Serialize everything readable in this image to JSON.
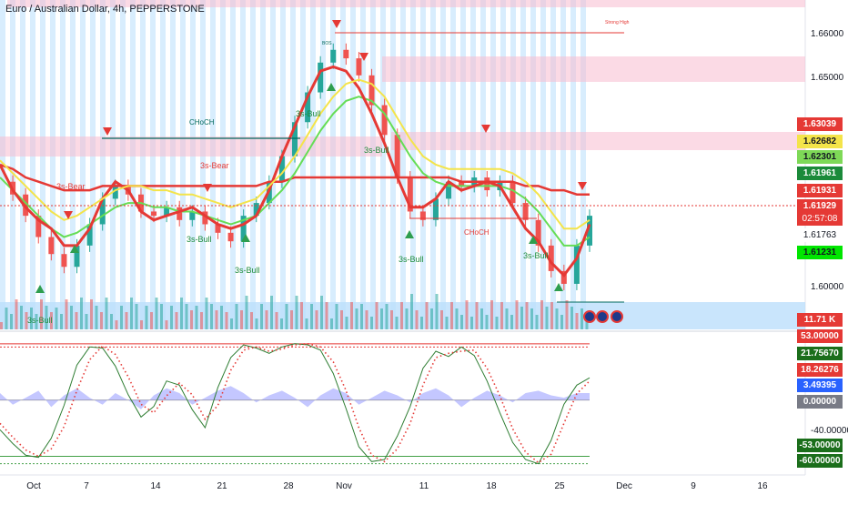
{
  "header": {
    "title": "Euro / Australian Dollar, 4h, PEPPERSTONE"
  },
  "colors": {
    "bull": "#26a69a",
    "bear": "#ef5350",
    "band": "#90caf9",
    "ema_red": "#e53935",
    "ema_green": "#66dd55",
    "ema_yellow": "#f4e44a",
    "accent_blue": "#2962ff"
  },
  "chart_data": [
    {
      "type": "line",
      "title": "Euro / Australian Dollar, 4h, PEPPERSTONE",
      "x_ticks": [
        "Oct",
        "7",
        "14",
        "21",
        "28",
        "Nov",
        "11",
        "18",
        "25",
        "Dec",
        "9",
        "16"
      ],
      "y_ticks": [
        "1.66000",
        "1.65000",
        "1.60000"
      ],
      "ylim": [
        1.597,
        1.668
      ],
      "series": [
        {
          "values": [
            1.627,
            1.624,
            1.619,
            1.614,
            1.61,
            1.607,
            1.612,
            1.617,
            1.623,
            1.626,
            1.624,
            1.62,
            1.619,
            1.621,
            1.618,
            1.62,
            1.617,
            1.615,
            1.613,
            1.619,
            1.622,
            1.627,
            1.633,
            1.641,
            1.648,
            1.655,
            1.658,
            1.656,
            1.652,
            1.645,
            1.638,
            1.628,
            1.62,
            1.618,
            1.623,
            1.627,
            1.626,
            1.628,
            1.625,
            1.627,
            1.622,
            1.618,
            1.612,
            1.606,
            1.603,
            1.612,
            1.619
          ]
        },
        {
          "values": [
            1.628,
            1.625,
            1.622,
            1.619,
            1.616,
            1.614,
            1.615,
            1.617,
            1.619,
            1.621,
            1.622,
            1.622,
            1.621,
            1.621,
            1.62,
            1.62,
            1.619,
            1.618,
            1.617,
            1.618,
            1.619,
            1.622,
            1.625,
            1.629,
            1.634,
            1.639,
            1.643,
            1.646,
            1.647,
            1.646,
            1.643,
            1.638,
            1.633,
            1.629,
            1.627,
            1.626,
            1.626,
            1.626,
            1.626,
            1.626,
            1.625,
            1.623,
            1.62,
            1.616,
            1.612,
            1.612,
            1.614
          ]
        },
        {
          "values": [
            1.631,
            1.63,
            1.628,
            1.627,
            1.626,
            1.625,
            1.625,
            1.625,
            1.626,
            1.626,
            1.626,
            1.626,
            1.626,
            1.626,
            1.626,
            1.626,
            1.626,
            1.626,
            1.626,
            1.626,
            1.626,
            1.627,
            1.627,
            1.628,
            1.628,
            1.628,
            1.628,
            1.628,
            1.628,
            1.628,
            1.628,
            1.628,
            1.628,
            1.628,
            1.628,
            1.628,
            1.627,
            1.627,
            1.627,
            1.627,
            1.627,
            1.626,
            1.626,
            1.625,
            1.625,
            1.624,
            1.624
          ]
        },
        {
          "values": [
            1.631,
            1.625,
            1.621,
            1.618,
            1.616,
            1.612,
            1.612,
            1.616,
            1.623,
            1.627,
            1.625,
            1.62,
            1.618,
            1.619,
            1.62,
            1.621,
            1.619,
            1.617,
            1.616,
            1.617,
            1.619,
            1.625,
            1.633,
            1.64,
            1.647,
            1.653,
            1.654,
            1.653,
            1.649,
            1.643,
            1.636,
            1.628,
            1.621,
            1.621,
            1.623,
            1.627,
            1.625,
            1.626,
            1.627,
            1.626,
            1.621,
            1.616,
            1.613,
            1.608,
            1.605,
            1.609,
            1.617
          ]
        }
      ],
      "price_tags": [
        "1.63039",
        "1.62682",
        "1.62301",
        "1.61961",
        "1.61931",
        "1.61929",
        "02:57:08",
        "1.61763",
        "1.61231",
        "11.71 K"
      ],
      "annotations": [
        "Strong High",
        "BOS",
        "CHoCH",
        "CHoCH",
        "3s-Bear",
        "3s-Bear",
        "3s-Bull",
        "3s-Bull",
        "3s-Bull",
        "3s-Bull",
        "3s-Bull",
        "3s-Bull",
        "3s-Bull",
        "CHoCH"
      ],
      "grid": false
    },
    {
      "type": "line",
      "ylim": [
        -62,
        58
      ],
      "y_ticks": [
        "-40.00000"
      ],
      "series": [
        {
          "values": [
            -28,
            -41,
            -52,
            -54,
            -36,
            -5,
            33,
            50,
            49,
            32,
            5,
            -16,
            -6,
            18,
            14,
            -9,
            -26,
            12,
            40,
            52,
            49,
            44,
            50,
            53,
            52,
            47,
            25,
            -8,
            -44,
            -58,
            -56,
            -34,
            -6,
            30,
            46,
            41,
            50,
            42,
            18,
            -12,
            -40,
            -56,
            -60,
            -38,
            -4,
            14,
            21
          ]
        },
        {
          "values": [
            -22,
            -35,
            -47,
            -53,
            -46,
            -25,
            9,
            38,
            51,
            43,
            22,
            -4,
            -12,
            4,
            16,
            5,
            -18,
            -5,
            28,
            47,
            50,
            46,
            48,
            52,
            53,
            50,
            36,
            9,
            -26,
            -52,
            -58,
            -46,
            -22,
            14,
            40,
            44,
            46,
            47,
            30,
            4,
            -27,
            -49,
            -59,
            -51,
            -22,
            6,
            18
          ]
        },
        {
          "values": [
            3,
            -2,
            1,
            4,
            -3,
            2,
            5,
            1,
            -2,
            3,
            0,
            -4,
            2,
            5,
            3,
            -2,
            1,
            4,
            6,
            3,
            -1,
            2,
            4,
            1,
            -3,
            2,
            5,
            3,
            -2,
            1,
            4,
            2,
            -1,
            3,
            5,
            2,
            -3,
            1,
            4,
            2,
            -1,
            3,
            4,
            2,
            1,
            3,
            3
          ]
        }
      ],
      "levels": [
        53,
        50,
        -53,
        -60
      ],
      "value_tags": [
        "53.00000",
        "21.75670",
        "18.26276",
        "3.49395",
        "0.00000",
        "-53.00000",
        "-60.00000"
      ]
    }
  ]
}
